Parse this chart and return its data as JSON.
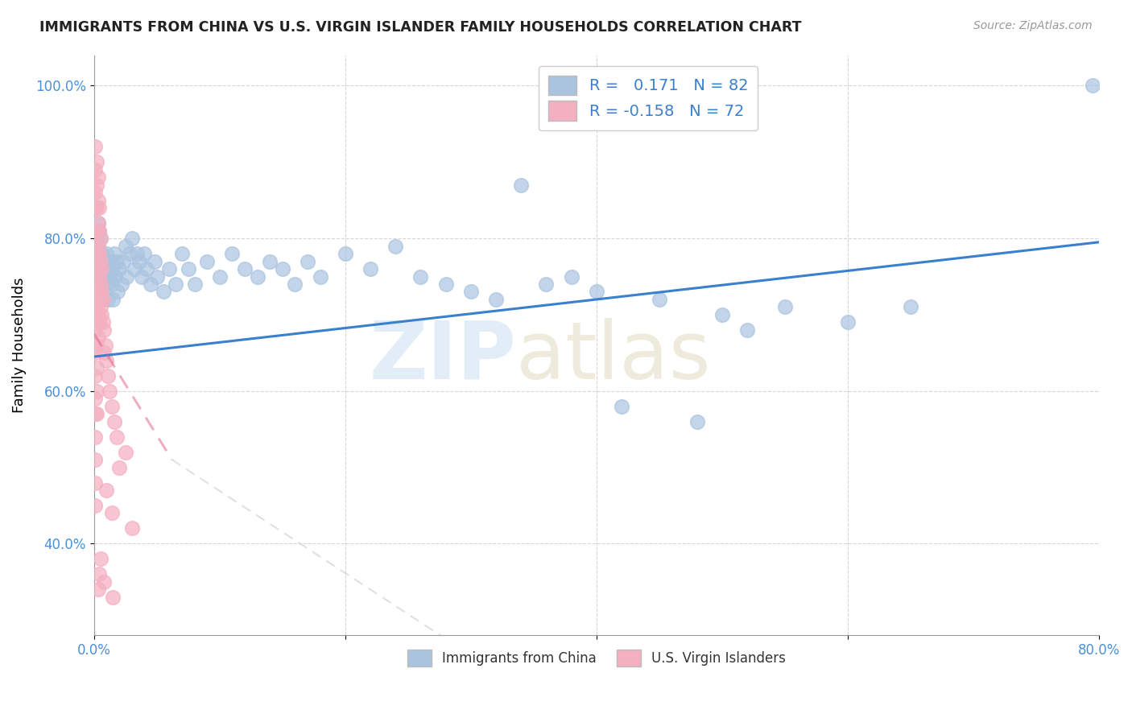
{
  "title": "IMMIGRANTS FROM CHINA VS U.S. VIRGIN ISLANDER FAMILY HOUSEHOLDS CORRELATION CHART",
  "source": "Source: ZipAtlas.com",
  "ylabel": "Family Households",
  "R_blue": 0.171,
  "N_blue": 82,
  "R_pink": -0.158,
  "N_pink": 72,
  "blue_color": "#aac4e0",
  "pink_color": "#f4afc0",
  "blue_line_color": "#3a80cc",
  "pink_line_color": "#e06080",
  "pink_line_dashed": true,
  "legend_blue_label": "Immigrants from China",
  "legend_pink_label": "U.S. Virgin Islanders",
  "x_min": 0.0,
  "x_max": 0.8,
  "y_min": 0.28,
  "y_max": 1.04,
  "x_ticks": [
    0.0,
    0.2,
    0.4,
    0.6,
    0.8
  ],
  "x_tick_labels": [
    "0.0%",
    "",
    "",
    "",
    "80.0%"
  ],
  "y_ticks": [
    0.4,
    0.6,
    0.8,
    1.0
  ],
  "y_tick_labels": [
    "40.0%",
    "60.0%",
    "80.0%",
    "100.0%"
  ],
  "blue_line_x0": 0.0,
  "blue_line_x1": 0.8,
  "blue_line_y0": 0.645,
  "blue_line_y1": 0.795,
  "pink_line_x0": 0.0,
  "pink_line_x1": 0.062,
  "pink_line_y0": 0.675,
  "pink_line_y1": 0.51,
  "blue_scatter": [
    [
      0.001,
      0.76
    ],
    [
      0.002,
      0.8
    ],
    [
      0.002,
      0.78
    ],
    [
      0.003,
      0.82
    ],
    [
      0.003,
      0.79
    ],
    [
      0.004,
      0.81
    ],
    [
      0.004,
      0.77
    ],
    [
      0.005,
      0.8
    ],
    [
      0.005,
      0.75
    ],
    [
      0.006,
      0.78
    ],
    [
      0.006,
      0.76
    ],
    [
      0.007,
      0.77
    ],
    [
      0.007,
      0.74
    ],
    [
      0.008,
      0.76
    ],
    [
      0.008,
      0.73
    ],
    [
      0.009,
      0.75
    ],
    [
      0.01,
      0.74
    ],
    [
      0.01,
      0.78
    ],
    [
      0.011,
      0.76
    ],
    [
      0.011,
      0.72
    ],
    [
      0.012,
      0.75
    ],
    [
      0.013,
      0.77
    ],
    [
      0.014,
      0.74
    ],
    [
      0.015,
      0.76
    ],
    [
      0.015,
      0.72
    ],
    [
      0.016,
      0.78
    ],
    [
      0.017,
      0.75
    ],
    [
      0.018,
      0.77
    ],
    [
      0.019,
      0.73
    ],
    [
      0.02,
      0.76
    ],
    [
      0.022,
      0.74
    ],
    [
      0.023,
      0.77
    ],
    [
      0.025,
      0.79
    ],
    [
      0.026,
      0.75
    ],
    [
      0.028,
      0.78
    ],
    [
      0.03,
      0.8
    ],
    [
      0.032,
      0.76
    ],
    [
      0.034,
      0.78
    ],
    [
      0.036,
      0.77
    ],
    [
      0.038,
      0.75
    ],
    [
      0.04,
      0.78
    ],
    [
      0.042,
      0.76
    ],
    [
      0.045,
      0.74
    ],
    [
      0.048,
      0.77
    ],
    [
      0.05,
      0.75
    ],
    [
      0.055,
      0.73
    ],
    [
      0.06,
      0.76
    ],
    [
      0.065,
      0.74
    ],
    [
      0.07,
      0.78
    ],
    [
      0.075,
      0.76
    ],
    [
      0.08,
      0.74
    ],
    [
      0.09,
      0.77
    ],
    [
      0.1,
      0.75
    ],
    [
      0.11,
      0.78
    ],
    [
      0.12,
      0.76
    ],
    [
      0.13,
      0.75
    ],
    [
      0.14,
      0.77
    ],
    [
      0.15,
      0.76
    ],
    [
      0.16,
      0.74
    ],
    [
      0.17,
      0.77
    ],
    [
      0.18,
      0.75
    ],
    [
      0.2,
      0.78
    ],
    [
      0.22,
      0.76
    ],
    [
      0.24,
      0.79
    ],
    [
      0.26,
      0.75
    ],
    [
      0.28,
      0.74
    ],
    [
      0.3,
      0.73
    ],
    [
      0.32,
      0.72
    ],
    [
      0.34,
      0.87
    ],
    [
      0.36,
      0.74
    ],
    [
      0.38,
      0.75
    ],
    [
      0.4,
      0.73
    ],
    [
      0.42,
      0.58
    ],
    [
      0.45,
      0.72
    ],
    [
      0.48,
      0.56
    ],
    [
      0.5,
      0.7
    ],
    [
      0.52,
      0.68
    ],
    [
      0.55,
      0.71
    ],
    [
      0.6,
      0.69
    ],
    [
      0.65,
      0.71
    ],
    [
      0.795,
      1.0
    ]
  ],
  "pink_scatter": [
    [
      0.001,
      0.92
    ],
    [
      0.001,
      0.89
    ],
    [
      0.001,
      0.86
    ],
    [
      0.001,
      0.84
    ],
    [
      0.001,
      0.81
    ],
    [
      0.001,
      0.79
    ],
    [
      0.001,
      0.76
    ],
    [
      0.001,
      0.73
    ],
    [
      0.001,
      0.7
    ],
    [
      0.001,
      0.68
    ],
    [
      0.001,
      0.65
    ],
    [
      0.001,
      0.62
    ],
    [
      0.001,
      0.59
    ],
    [
      0.001,
      0.57
    ],
    [
      0.001,
      0.54
    ],
    [
      0.001,
      0.51
    ],
    [
      0.001,
      0.48
    ],
    [
      0.001,
      0.45
    ],
    [
      0.002,
      0.9
    ],
    [
      0.002,
      0.87
    ],
    [
      0.002,
      0.84
    ],
    [
      0.002,
      0.81
    ],
    [
      0.002,
      0.78
    ],
    [
      0.002,
      0.75
    ],
    [
      0.002,
      0.72
    ],
    [
      0.002,
      0.69
    ],
    [
      0.002,
      0.66
    ],
    [
      0.002,
      0.63
    ],
    [
      0.002,
      0.6
    ],
    [
      0.002,
      0.57
    ],
    [
      0.003,
      0.88
    ],
    [
      0.003,
      0.85
    ],
    [
      0.003,
      0.82
    ],
    [
      0.003,
      0.79
    ],
    [
      0.003,
      0.76
    ],
    [
      0.003,
      0.73
    ],
    [
      0.003,
      0.7
    ],
    [
      0.003,
      0.67
    ],
    [
      0.004,
      0.84
    ],
    [
      0.004,
      0.81
    ],
    [
      0.004,
      0.78
    ],
    [
      0.004,
      0.75
    ],
    [
      0.004,
      0.72
    ],
    [
      0.004,
      0.69
    ],
    [
      0.005,
      0.8
    ],
    [
      0.005,
      0.77
    ],
    [
      0.005,
      0.74
    ],
    [
      0.005,
      0.71
    ],
    [
      0.006,
      0.76
    ],
    [
      0.006,
      0.73
    ],
    [
      0.006,
      0.7
    ],
    [
      0.007,
      0.72
    ],
    [
      0.007,
      0.69
    ],
    [
      0.008,
      0.68
    ],
    [
      0.008,
      0.65
    ],
    [
      0.009,
      0.66
    ],
    [
      0.01,
      0.64
    ],
    [
      0.011,
      0.62
    ],
    [
      0.012,
      0.6
    ],
    [
      0.014,
      0.58
    ],
    [
      0.016,
      0.56
    ],
    [
      0.018,
      0.54
    ],
    [
      0.01,
      0.47
    ],
    [
      0.014,
      0.44
    ],
    [
      0.02,
      0.5
    ],
    [
      0.015,
      0.33
    ],
    [
      0.03,
      0.42
    ],
    [
      0.008,
      0.35
    ],
    [
      0.005,
      0.38
    ],
    [
      0.004,
      0.36
    ],
    [
      0.003,
      0.34
    ],
    [
      0.025,
      0.52
    ]
  ]
}
